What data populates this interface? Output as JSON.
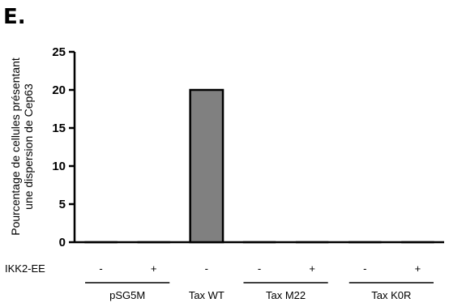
{
  "panel_label": "E.",
  "chart_data": {
    "type": "bar",
    "ylabel_lines": [
      "Pourcentage de cellules présentant",
      "une dispersion de Cep63"
    ],
    "ylim": [
      0,
      25
    ],
    "yticks": [
      0,
      5,
      10,
      15,
      20,
      25
    ],
    "treatment_row_label": "IKK2-EE",
    "categories": [
      {
        "group": "pSG5M",
        "ikk2": "-",
        "value": 0
      },
      {
        "group": "pSG5M",
        "ikk2": "+",
        "value": 0
      },
      {
        "group": "Tax WT",
        "ikk2": "-",
        "value": 20
      },
      {
        "group": "Tax M22",
        "ikk2": "-",
        "value": 0
      },
      {
        "group": "Tax M22",
        "ikk2": "+",
        "value": 0
      },
      {
        "group": "Tax K0R",
        "ikk2": "-",
        "value": 0
      },
      {
        "group": "Tax K0R",
        "ikk2": "+",
        "value": 0
      }
    ],
    "groups": [
      "pSG5M",
      "Tax WT",
      "Tax M22",
      "Tax K0R"
    ],
    "bar_color": "#808080",
    "grid": false
  }
}
